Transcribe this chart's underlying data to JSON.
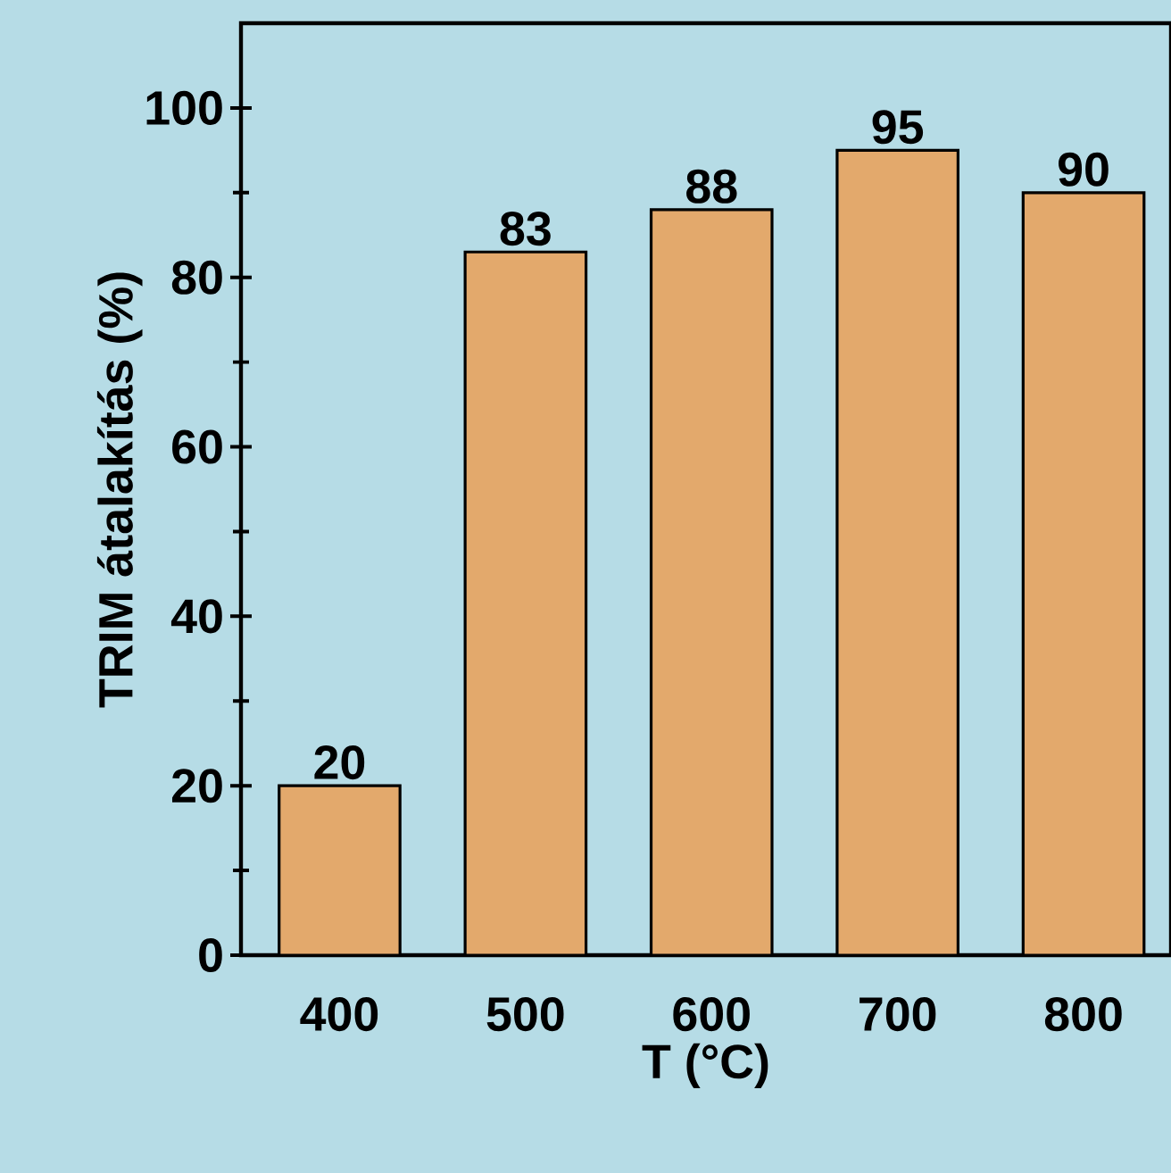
{
  "chart_data": {
    "type": "bar",
    "xlabel": "T (°C)",
    "ylabel": "TRIM átalakítás (%)",
    "categories": [
      "400",
      "500",
      "600",
      "700",
      "800"
    ],
    "values": [
      20,
      83,
      88,
      95,
      90
    ],
    "color": "#e3a96c",
    "ylim": [
      0,
      110
    ],
    "yticks": [
      0,
      20,
      40,
      60,
      80,
      100
    ],
    "data_labels": true
  }
}
